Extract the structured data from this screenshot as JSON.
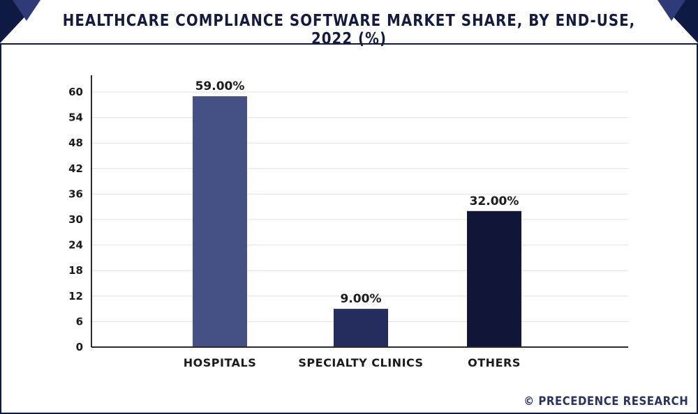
{
  "chart_data": {
    "type": "bar",
    "title": "HEALTHCARE COMPLIANCE SOFTWARE MARKET SHARE, BY END-USE, 2022 (%)",
    "categories": [
      "HOSPITALS",
      "SPECIALTY CLINICS",
      "OTHERS"
    ],
    "values": [
      59.0,
      9.0,
      32.0
    ],
    "data_labels": [
      "59.00%",
      "9.00%",
      "32.00%"
    ],
    "bar_colors": [
      "#475084",
      "#252c5e",
      "#0f1638"
    ],
    "ylim": [
      0,
      60
    ],
    "yticks": [
      0,
      6,
      12,
      18,
      24,
      30,
      36,
      42,
      48,
      54,
      60
    ],
    "xlabel": "",
    "ylabel": "",
    "grid": true,
    "legend": "none"
  },
  "watermark": "© PRECEDENCE RESEARCH",
  "colors": {
    "frame": "#0f1a44",
    "corner": "#0f1a44",
    "grid": "#e0e0e0",
    "axis": "#2b2b2b"
  }
}
